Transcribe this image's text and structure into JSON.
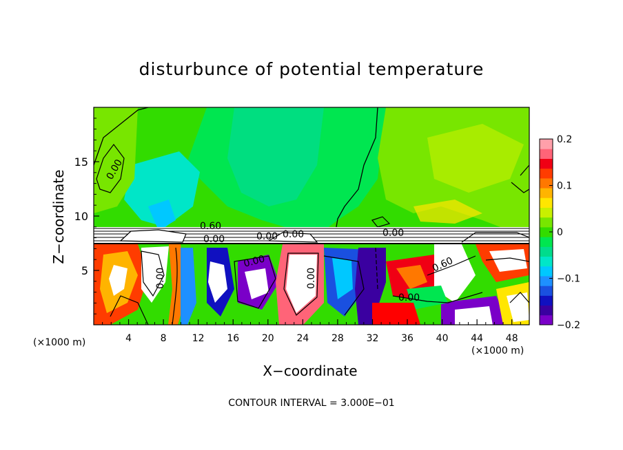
{
  "chart_data": {
    "type": "heatmap",
    "title": "disturbunce of potential temperature",
    "xlabel": "X−coordinate",
    "ylabel": "Z−coordinate",
    "x_unit": "(×1000 m)",
    "x_unit_right": "(×1000 m)",
    "x_ticks": [
      "4",
      "8",
      "12",
      "16",
      "20",
      "24",
      "28",
      "32",
      "36",
      "40",
      "44",
      "48"
    ],
    "y_ticks": [
      "5",
      "10",
      "15"
    ],
    "xlim": [
      0,
      50
    ],
    "ylim": [
      0,
      20
    ],
    "colorbar": {
      "min": -0.2,
      "max": 0.2,
      "tick_labels": [
        "0.2",
        "0.1",
        "0",
        "−0.1",
        "−0.2"
      ],
      "colors": [
        "#7a00c8",
        "#3a00a0",
        "#1010c0",
        "#1a50e0",
        "#1e90ff",
        "#00c8ff",
        "#00e6c8",
        "#00dc8c",
        "#00e650",
        "#32dc00",
        "#78e600",
        "#c8f000",
        "#ffe600",
        "#ffb400",
        "#ff7800",
        "#ff3c00",
        "#f00014",
        "#ff6478",
        "#ffa0aa"
      ]
    },
    "contour_labels": [
      "0.00",
      "0.00",
      "0.00",
      "0.00",
      "0.60",
      "0.60",
      "0.00",
      "0.00",
      "0.00",
      "0.00",
      "0.00"
    ],
    "footer": "CONTOUR INTERVAL = 3.000E−01"
  }
}
